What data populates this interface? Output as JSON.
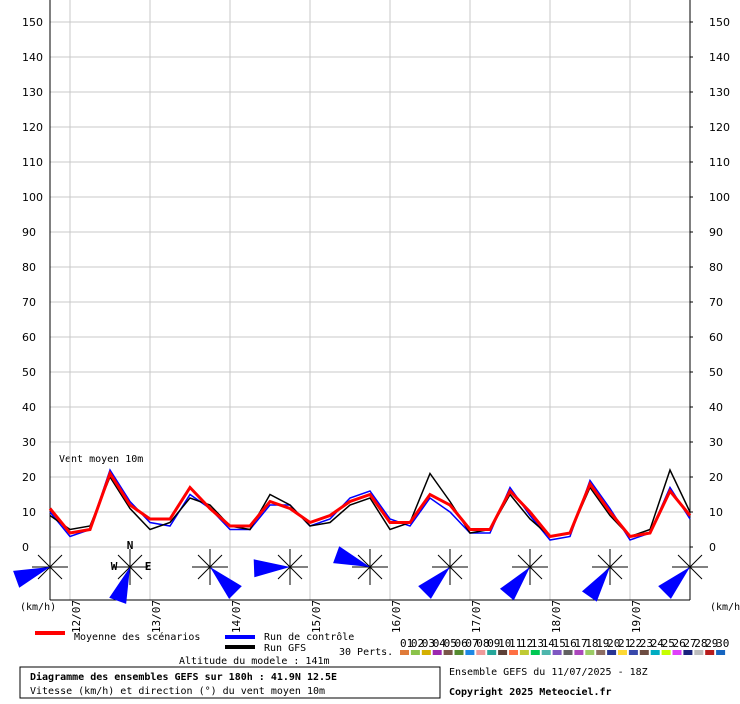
{
  "chart_data": {
    "type": "line",
    "title": "Diagramme des ensembles GEFS sur 180h : 41.9N 12.5E",
    "subtitle": "Vitesse (km/h) et direction (°) du vent moyen 10m",
    "y_unit_left": "(km/h)",
    "y_unit_right": "(km/h)",
    "annotation": "Vent moyen 10m",
    "altitude": "Altitude du modele : 141m",
    "perts_label": "30 Perts.",
    "run_info": "Ensemble GEFS du 11/07/2025 - 18Z",
    "copyright": "Copyright 2025 Meteociel.fr",
    "categories": [
      null,
      "12/07",
      null,
      null,
      null,
      "13/07",
      null,
      null,
      null,
      "14/07",
      null,
      null,
      null,
      "15/07",
      null,
      null,
      null,
      "16/07",
      null,
      null,
      null,
      "17/07",
      null,
      null,
      null,
      "18/07",
      null,
      null,
      null,
      "19/07",
      null,
      null,
      null
    ],
    "series": [
      {
        "name": "Run de contrôle",
        "color": "#0000ff",
        "values": [
          10,
          3,
          5,
          22,
          13,
          7,
          6,
          15,
          11,
          5,
          5,
          12,
          12,
          6,
          8,
          14,
          16,
          8,
          6,
          14,
          10,
          4,
          4,
          17,
          9,
          2,
          3,
          19,
          11,
          2,
          4,
          17,
          8
        ]
      },
      {
        "name": "Run GFS",
        "color": "#000000",
        "values": [
          9,
          5,
          6,
          20,
          11,
          5,
          7,
          14,
          12,
          6,
          5,
          15,
          12,
          6,
          7,
          12,
          14,
          5,
          7,
          21,
          13,
          4,
          5,
          15,
          8,
          3,
          4,
          17,
          9,
          3,
          5,
          22,
          10
        ]
      },
      {
        "name": "Moyenne des scénarios",
        "color": "#ff0000",
        "values": [
          11,
          4,
          5,
          21,
          12,
          8,
          8,
          17,
          11,
          6,
          6,
          13,
          11,
          7,
          9,
          13,
          15,
          7,
          7,
          15,
          12,
          5,
          5,
          16,
          10,
          3,
          4,
          18,
          10,
          3,
          4,
          16,
          9
        ]
      }
    ],
    "ylim": [
      0,
      150
    ],
    "yticks": [
      0,
      10,
      20,
      30,
      40,
      50,
      60,
      70,
      80,
      90,
      100,
      110,
      120,
      130,
      140,
      150
    ],
    "y2lim": [
      0,
      150
    ],
    "y2ticks": [
      0,
      10,
      20,
      30,
      40,
      50,
      60,
      70,
      80,
      90,
      100,
      110,
      120,
      130,
      140,
      150
    ],
    "grid": true,
    "wind_directions": [
      250,
      200,
      135,
      268,
      290,
      225,
      220,
      215,
      225
    ],
    "compass_labels": [
      "N",
      "W",
      "E"
    ],
    "perturbations": [
      {
        "label": "01",
        "color": "#e07b39"
      },
      {
        "label": "02",
        "color": "#8bc34a"
      },
      {
        "label": "03",
        "color": "#d4b000"
      },
      {
        "label": "04",
        "color": "#9c27b0"
      },
      {
        "label": "05",
        "color": "#795548"
      },
      {
        "label": "06",
        "color": "#558b2f"
      },
      {
        "label": "07",
        "color": "#1e88e5"
      },
      {
        "label": "08",
        "color": "#ef9a9a"
      },
      {
        "label": "09",
        "color": "#26a69a"
      },
      {
        "label": "10",
        "color": "#5d4037"
      },
      {
        "label": "11",
        "color": "#ff7043"
      },
      {
        "label": "12",
        "color": "#c0ca33"
      },
      {
        "label": "13",
        "color": "#00c853"
      },
      {
        "label": "14",
        "color": "#4db6ac"
      },
      {
        "label": "15",
        "color": "#7e57c2"
      },
      {
        "label": "16",
        "color": "#616161"
      },
      {
        "label": "17",
        "color": "#ab47bc"
      },
      {
        "label": "18",
        "color": "#9ccc65"
      },
      {
        "label": "19",
        "color": "#8d6e63"
      },
      {
        "label": "20",
        "color": "#283593"
      },
      {
        "label": "21",
        "color": "#fdd835"
      },
      {
        "label": "22",
        "color": "#3949ab"
      },
      {
        "label": "23",
        "color": "#6d4c41"
      },
      {
        "label": "24",
        "color": "#00acc1"
      },
      {
        "label": "25",
        "color": "#c6ff00"
      },
      {
        "label": "26",
        "color": "#e040fb"
      },
      {
        "label": "27",
        "color": "#1a237e"
      },
      {
        "label": "28",
        "color": "#bdbdbd"
      },
      {
        "label": "29",
        "color": "#b71c1c"
      },
      {
        "label": "30",
        "color": "#1565c0"
      }
    ]
  }
}
